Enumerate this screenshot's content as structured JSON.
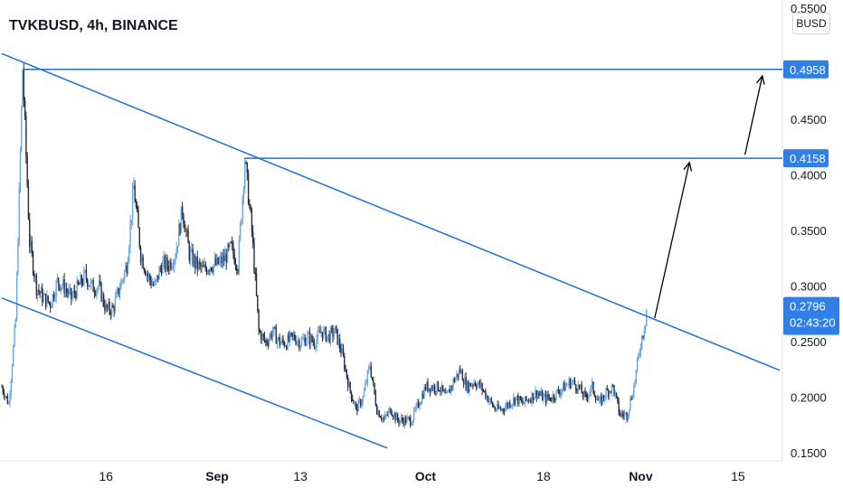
{
  "header": {
    "title": "TVKBUSD, 4h, BINANCE"
  },
  "currency_badge": "BUSD",
  "colors": {
    "accent": "#2962ff",
    "line": "#1e6fd9",
    "candle_up": "#6aa5e6",
    "candle_down": "#2a2e39",
    "tag": "#2f7fe6",
    "arrow": "#000000"
  },
  "chart_data": {
    "type": "candlestick",
    "symbol": "TVKBUSD",
    "interval": "4h",
    "exchange": "BINANCE",
    "y_ticks": [
      "0.5500",
      "0.4500",
      "0.4000",
      "0.3500",
      "0.3000",
      "0.2500",
      "0.2000",
      "0.1500"
    ],
    "x_ticks": [
      {
        "label": "16",
        "bold": false,
        "day": 16
      },
      {
        "label": "Sep",
        "bold": true,
        "day": 32
      },
      {
        "label": "13",
        "bold": false,
        "day": 44
      },
      {
        "label": "Oct",
        "bold": true,
        "day": 62
      },
      {
        "label": "18",
        "bold": false,
        "day": 79
      },
      {
        "label": "Nov",
        "bold": true,
        "day": 93
      },
      {
        "label": "15",
        "bold": false,
        "day": 107
      }
    ],
    "ylim": [
      0.15,
      0.555
    ],
    "xlim_day": [
      1,
      113
    ],
    "price_path": [
      [
        1,
        0.21
      ],
      [
        2,
        0.195
      ],
      [
        3,
        0.27
      ],
      [
        4,
        0.496
      ],
      [
        5,
        0.34
      ],
      [
        6,
        0.3
      ],
      [
        7,
        0.29
      ],
      [
        8,
        0.285
      ],
      [
        9,
        0.305
      ],
      [
        10,
        0.3
      ],
      [
        11,
        0.29
      ],
      [
        12,
        0.3
      ],
      [
        13,
        0.31
      ],
      [
        14,
        0.3
      ],
      [
        15,
        0.3
      ],
      [
        16,
        0.28
      ],
      [
        17,
        0.28
      ],
      [
        18,
        0.3
      ],
      [
        19,
        0.32
      ],
      [
        20,
        0.39
      ],
      [
        21,
        0.33
      ],
      [
        22,
        0.31
      ],
      [
        23,
        0.3
      ],
      [
        24,
        0.32
      ],
      [
        25,
        0.32
      ],
      [
        26,
        0.33
      ],
      [
        27,
        0.37
      ],
      [
        28,
        0.33
      ],
      [
        29,
        0.32
      ],
      [
        30,
        0.315
      ],
      [
        31,
        0.32
      ],
      [
        32,
        0.32
      ],
      [
        33,
        0.325
      ],
      [
        34,
        0.335
      ],
      [
        35,
        0.32
      ],
      [
        36,
        0.415
      ],
      [
        37,
        0.35
      ],
      [
        38,
        0.26
      ],
      [
        39,
        0.25
      ],
      [
        40,
        0.26
      ],
      [
        41,
        0.25
      ],
      [
        42,
        0.25
      ],
      [
        43,
        0.255
      ],
      [
        44,
        0.25
      ],
      [
        45,
        0.255
      ],
      [
        46,
        0.25
      ],
      [
        47,
        0.26
      ],
      [
        48,
        0.255
      ],
      [
        49,
        0.26
      ],
      [
        50,
        0.24
      ],
      [
        51,
        0.21
      ],
      [
        52,
        0.19
      ],
      [
        53,
        0.2
      ],
      [
        54,
        0.23
      ],
      [
        55,
        0.19
      ],
      [
        56,
        0.18
      ],
      [
        57,
        0.19
      ],
      [
        58,
        0.18
      ],
      [
        59,
        0.18
      ],
      [
        60,
        0.18
      ],
      [
        61,
        0.195
      ],
      [
        62,
        0.21
      ],
      [
        63,
        0.21
      ],
      [
        64,
        0.21
      ],
      [
        65,
        0.2
      ],
      [
        66,
        0.215
      ],
      [
        67,
        0.225
      ],
      [
        68,
        0.21
      ],
      [
        69,
        0.215
      ],
      [
        70,
        0.21
      ],
      [
        71,
        0.2
      ],
      [
        72,
        0.19
      ],
      [
        73,
        0.19
      ],
      [
        74,
        0.195
      ],
      [
        75,
        0.2
      ],
      [
        76,
        0.195
      ],
      [
        77,
        0.2
      ],
      [
        78,
        0.205
      ],
      [
        79,
        0.2
      ],
      [
        80,
        0.2
      ],
      [
        81,
        0.205
      ],
      [
        82,
        0.21
      ],
      [
        83,
        0.215
      ],
      [
        84,
        0.21
      ],
      [
        85,
        0.2
      ],
      [
        86,
        0.21
      ],
      [
        87,
        0.195
      ],
      [
        88,
        0.205
      ],
      [
        89,
        0.21
      ],
      [
        90,
        0.185
      ],
      [
        91,
        0.185
      ],
      [
        92,
        0.21
      ],
      [
        93,
        0.25
      ],
      [
        94,
        0.28
      ]
    ],
    "channel_upper": {
      "start": [
        1,
        0.51
      ],
      "end": [
        113,
        0.225
      ]
    },
    "channel_lower": {
      "start": [
        1,
        0.29
      ],
      "end": [
        56.5,
        0.155
      ]
    },
    "resistance_lines": [
      {
        "price": 0.4958,
        "from_day": 4,
        "label": "0.4958"
      },
      {
        "price": 0.4158,
        "from_day": 36,
        "label": "0.4158"
      }
    ],
    "arrows": [
      {
        "from": [
          95,
          0.272
        ],
        "to": [
          100,
          0.412
        ]
      },
      {
        "from": [
          108,
          0.419
        ],
        "to": [
          110.5,
          0.49
        ]
      }
    ],
    "last_price": {
      "value": "0.2796",
      "countdown": "02:43:20",
      "price": 0.2796
    }
  }
}
